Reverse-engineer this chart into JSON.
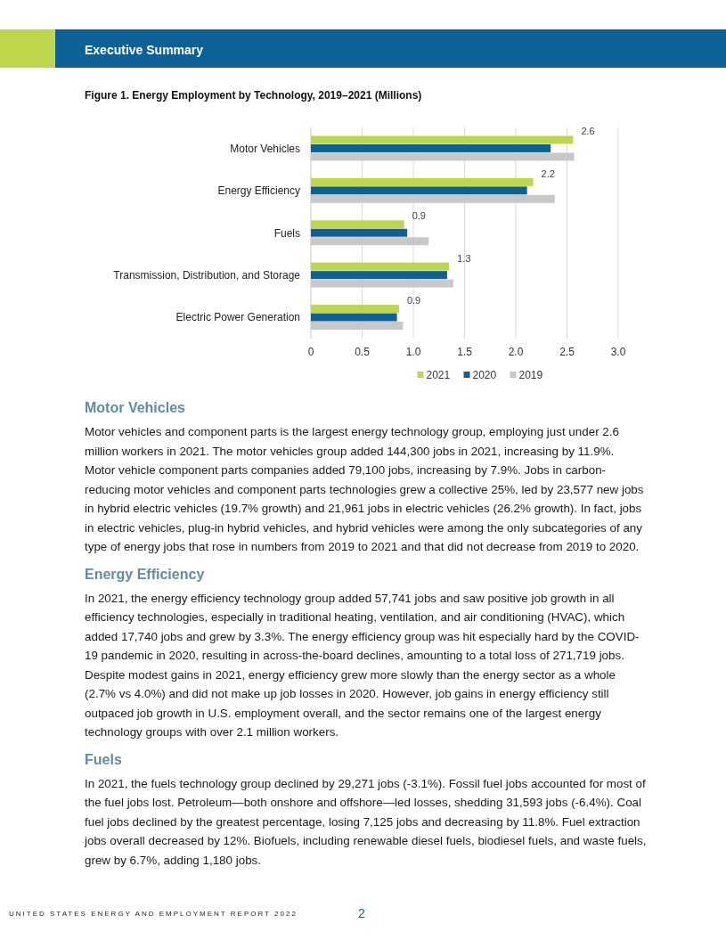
{
  "chart_data": {
    "type": "bar",
    "orientation": "horizontal",
    "title": "Figure 1. Energy Employment by Technology, 2019–2021 (Millions)",
    "categories": [
      "Motor Vehicles",
      "Energy Efficiency",
      "Fuels",
      "Transmission, Distribution, and Storage",
      "Electric Power Generation"
    ],
    "series": [
      {
        "name": "2021",
        "color": "#bed64b",
        "values": [
          2.56,
          2.17,
          0.91,
          1.35,
          0.86
        ],
        "value_labels": [
          "2.6",
          "2.2",
          "0.9",
          "1.3",
          "0.9"
        ]
      },
      {
        "name": "2020",
        "color": "#0e6196",
        "values": [
          2.34,
          2.11,
          0.94,
          1.33,
          0.84
        ]
      },
      {
        "name": "2019",
        "color": "#c8c8c8",
        "values": [
          2.57,
          2.38,
          1.15,
          1.39,
          0.9
        ]
      }
    ],
    "xlim": [
      0,
      3
    ],
    "xticks": [
      0,
      {
        "value": 0.5,
        "label": "0.5"
      },
      {
        "value": 1,
        "label": "1.0"
      },
      {
        "value": 1.5,
        "label": "1.5"
      },
      {
        "value": 2,
        "label": "2.0"
      },
      {
        "value": 2.5,
        "label": "2.5"
      },
      {
        "value": 3,
        "label": "3.0"
      }
    ],
    "grid": "x",
    "legend": "bottom",
    "annotations": [
      "Executive Summary",
      "Motor Vehicles",
      "Motor vehicles and component parts is the largest energy technology group, employing just under 2.6 million workers in 2021. The motor vehicles group added 144,300 jobs in 2021, increasing by 11.9%. Motor vehicle component parts companies added 79,100 jobs, increasing by 7.9%. Jobs in carbon-reducing motor vehicles and component parts technologies grew a collective 25%, led by 23,577 new jobs in hybrid electric vehicles (19.7% growth) and 21,961 jobs in electric vehicles (26.2% growth). In fact, jobs in electric vehicles, plug-in hybrid vehicles, and hybrid vehicles were among the only subcategories of any type of energy jobs that rose in numbers from 2019 to 2021 and that did not decrease from 2019 to 2020.",
      "Energy Efficiency",
      "In 2021, the energy efficiency technology group added 57,741 jobs and saw positive job growth in all efficiency technologies, especially in traditional heating, ventilation, and air conditioning (HVAC), which added 17,740 jobs and grew by 3.3%. The energy efficiency group was hit especially hard by the COVID-19 pandemic in 2020, resulting in across-the-board declines, amounting to a total loss of 271,719 jobs. Despite modest gains in 2021, energy efficiency grew more slowly than the energy sector as a whole (2.7% vs 4.0%) and did not make up job losses in 2020. However, job gains in energy efficiency still outpaced job growth in U.S. employment overall, and the sector remains one of the largest energy technology groups with over 2.1 million workers.",
      "Fuels",
      "In 2021, the fuels technology group declined by 29,271 jobs (-3.1%). Fossil fuel jobs accounted for most of the fuel jobs lost. Petroleum—both onshore and offshore—led losses, shedding 31,593 jobs (-6.4%). Coal fuel jobs declined by the greatest percentage, losing 7,125 jobs and decreasing by 11.8%. Fuel extraction jobs overall decreased by 12%. Biofuels, including renewable diesel fuels, biodiesel fuels, and waste fuels, grew by 6.7%, adding 1,180 jobs.",
      "UNITED STATES ENERGY AND EMPLOYMENT REPORT 2022",
      "2"
    ]
  }
}
